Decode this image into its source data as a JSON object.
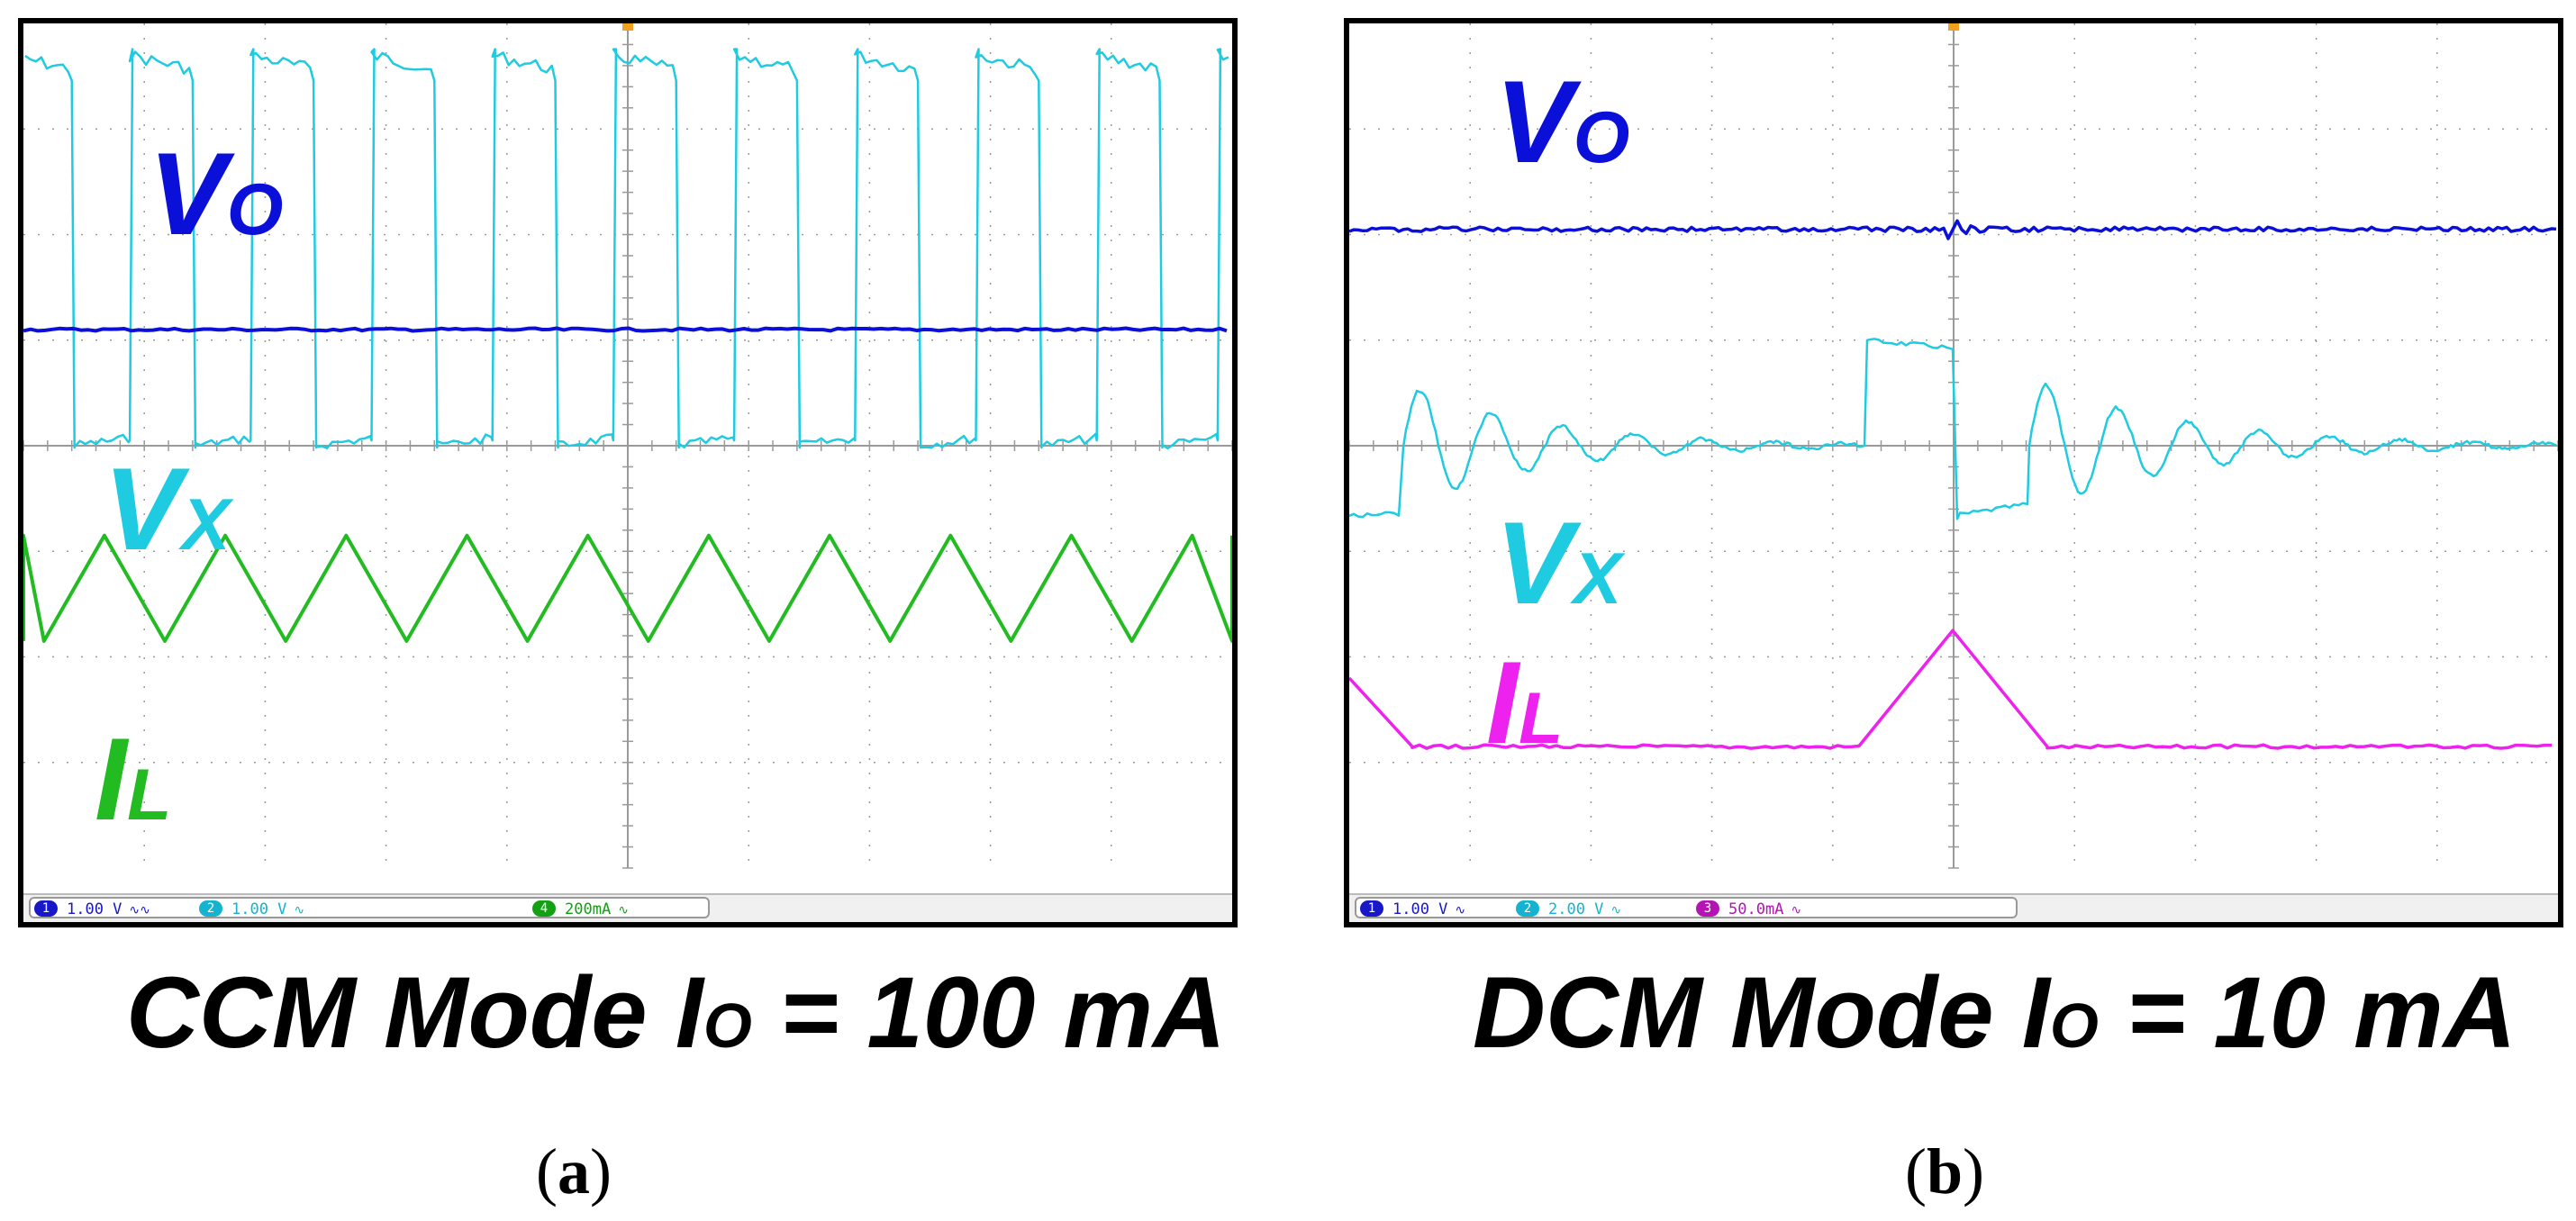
{
  "chart_data": [
    {
      "type": "line",
      "title": "CCM Mode I_O = 100 mA",
      "panel_label": "(a)",
      "grid": true,
      "divisions": {
        "x": 10,
        "y": 8
      },
      "caption": {
        "prefix": "CCM Mode I",
        "sub": "O",
        "suffix": " = 100 mA"
      },
      "sublabel": {
        "open": "(",
        "letter": "a",
        "close": ")"
      },
      "series": [
        {
          "name": "VO",
          "label_main": "V",
          "label_sub": "O",
          "color": "#0a10d8",
          "level_div": 5.1,
          "shape": "dc"
        },
        {
          "name": "VX",
          "label_main": "V",
          "label_sub": "X",
          "color": "#1ecbe0",
          "shape": "square",
          "high_div": 7.8,
          "low_div": 4.05,
          "cycles": 10,
          "duty": 0.52
        },
        {
          "name": "IL",
          "label_main": "I",
          "label_sub": "L",
          "color": "#22bb22",
          "shape": "triangle",
          "peak_div": 3.15,
          "valley_div": 2.15,
          "cycles": 10
        }
      ],
      "status": [
        {
          "num": "1",
          "value": "1.00 V",
          "sym": "∿∿",
          "color": "#1818c8"
        },
        {
          "num": "2",
          "value": "1.00 V",
          "sym": "∿",
          "color": "#14b4d0"
        },
        {
          "num": "4",
          "value": "200mA",
          "sym": "∿",
          "color": "#14a014"
        }
      ]
    },
    {
      "type": "line",
      "title": "DCM Mode I_O = 10 mA",
      "panel_label": "(b)",
      "grid": true,
      "divisions": {
        "x": 10,
        "y": 8
      },
      "caption": {
        "prefix": "DCM Mode I",
        "sub": "O",
        "suffix": " = 10 mA"
      },
      "sublabel": {
        "open": "(",
        "letter": "b",
        "close": ")"
      },
      "series": [
        {
          "name": "VO",
          "label_main": "V",
          "label_sub": "O",
          "color": "#0a10d8",
          "level_div": 6.05,
          "shape": "dc_ripple"
        },
        {
          "name": "VX",
          "label_main": "V",
          "label_sub": "X",
          "color": "#1ecbe0",
          "shape": "dcm_switch",
          "base_div": 4.0,
          "high_div": 5.0,
          "low_div": 3.35
        },
        {
          "name": "IL",
          "label_main": "I",
          "label_sub": "L",
          "color": "#ee22ee",
          "shape": "dcm_triangle",
          "zero_div": 1.15,
          "peak_div": 2.25
        },
        {
          "name": "IL_start",
          "color": "#ee22ee",
          "start_div": 1.8
        }
      ],
      "status": [
        {
          "num": "1",
          "value": "1.00 V",
          "sym": "∿",
          "color": "#1818c8"
        },
        {
          "num": "2",
          "value": "2.00 V",
          "sym": "∿",
          "color": "#14b4d0"
        },
        {
          "num": "3",
          "value": "50.0mA",
          "sym": "∿",
          "color": "#b414b4"
        }
      ]
    }
  ]
}
